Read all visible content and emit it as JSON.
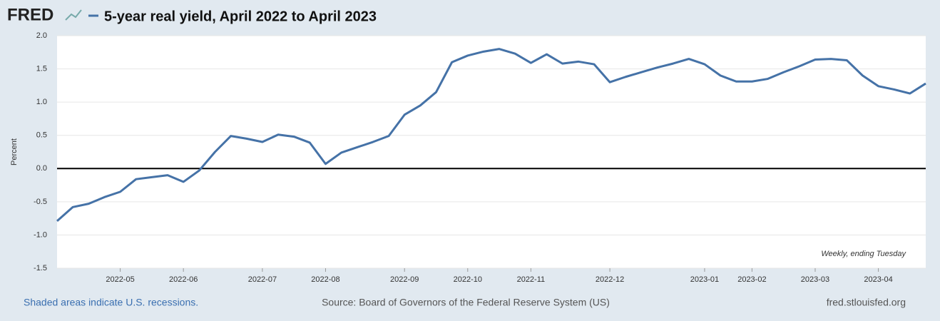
{
  "brand": "FRED",
  "chart_data": {
    "type": "line",
    "title": "5-year real yield, April 2022 to April 2023",
    "ylabel": "Percent",
    "note": "Weekly, ending Tuesday",
    "color": "#4572a7",
    "categories": [
      null,
      null,
      null,
      null,
      "2022-05",
      null,
      null,
      null,
      "2022-06",
      null,
      null,
      null,
      null,
      "2022-07",
      null,
      null,
      null,
      "2022-08",
      null,
      null,
      null,
      null,
      "2022-09",
      null,
      null,
      null,
      "2022-10",
      null,
      null,
      null,
      "2022-11",
      null,
      null,
      null,
      null,
      "2022-12",
      null,
      null,
      null,
      null,
      null,
      "2023-01",
      null,
      null,
      "2023-02",
      null,
      null,
      null,
      "2023-03",
      null,
      null,
      null,
      "2023-04",
      null,
      null,
      null
    ],
    "values": [
      -0.79,
      -0.58,
      -0.53,
      -0.43,
      -0.35,
      -0.16,
      -0.13,
      -0.1,
      -0.2,
      -0.03,
      0.25,
      0.49,
      0.45,
      0.4,
      0.51,
      0.48,
      0.39,
      0.07,
      0.24,
      0.32,
      0.4,
      0.49,
      0.81,
      0.95,
      1.15,
      1.6,
      1.7,
      1.76,
      1.8,
      1.73,
      1.59,
      1.72,
      1.58,
      1.61,
      1.57,
      1.3,
      1.38,
      1.45,
      1.52,
      1.58,
      1.65,
      1.57,
      1.4,
      1.31,
      1.31,
      1.35,
      1.45,
      1.54,
      1.64,
      1.65,
      1.63,
      1.4,
      1.24,
      1.19,
      1.13,
      1.28
    ],
    "ylim": [
      -1.5,
      2
    ],
    "yticks": [
      {
        "value": 2,
        "label": "2.0"
      },
      1.5,
      {
        "value": 1,
        "label": "1.0"
      },
      0.5,
      {
        "value": 0,
        "label": "0.0"
      },
      -0.5,
      {
        "value": -1,
        "label": "-1.0"
      },
      -1.5
    ],
    "grid": true
  },
  "footer": {
    "left": "Shaded areas indicate U.S. recessions.",
    "center": "Source: Board of Governors of the Federal Reserve System (US)",
    "right": "fred.stlouisfed.org"
  }
}
